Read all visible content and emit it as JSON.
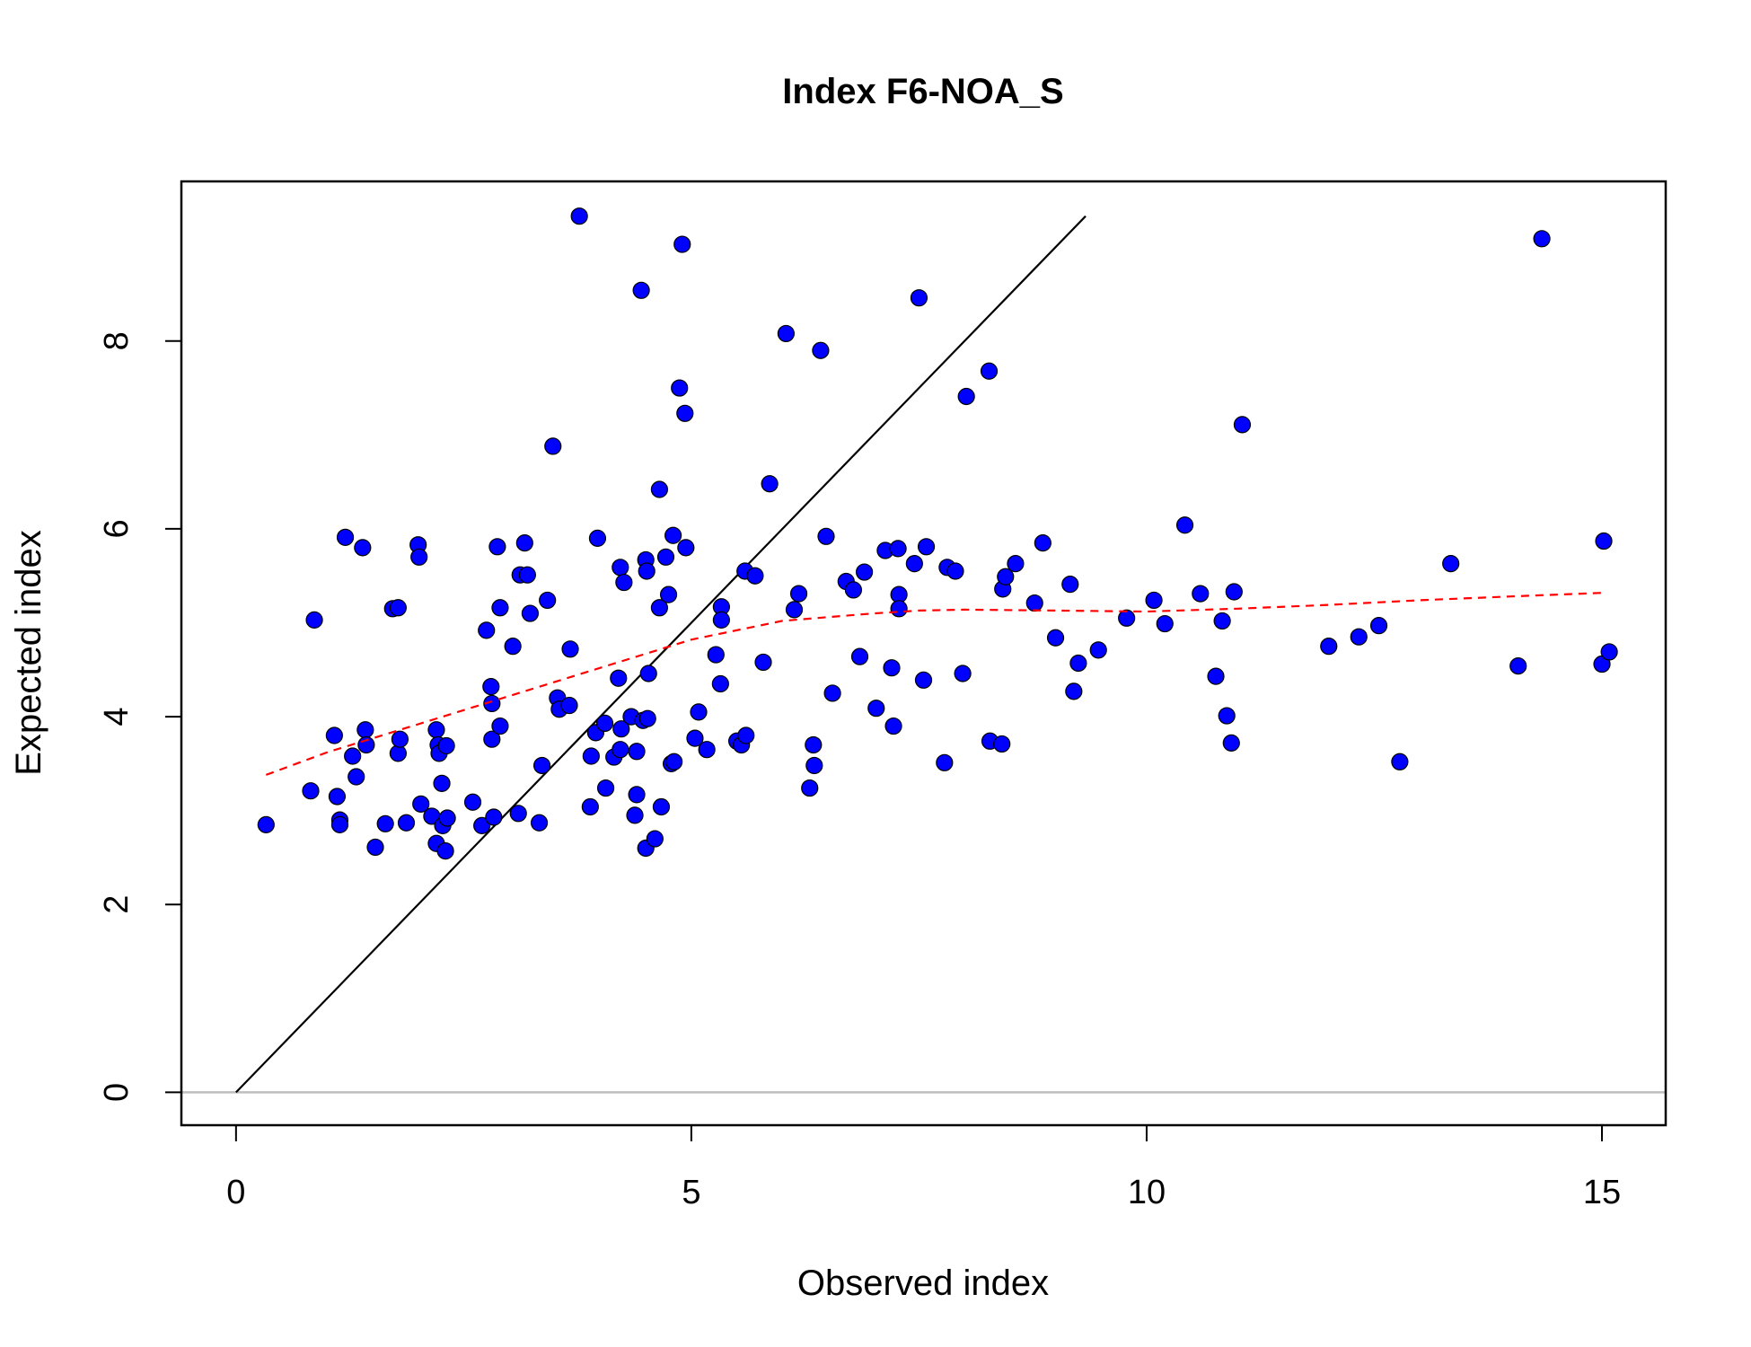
{
  "chart_data": {
    "type": "scatter",
    "title": "Index F6-NOA_S",
    "xlabel": "Observed index",
    "ylabel": "Expected index",
    "xlim": [
      -0.6,
      15.7
    ],
    "ylim": [
      -0.35,
      9.7
    ],
    "xticks": [
      0,
      5,
      10,
      15
    ],
    "yticks": [
      0,
      2,
      4,
      6,
      8
    ],
    "grid": false,
    "colors": {
      "points": "#0000ff",
      "point_border": "#000000",
      "identity_line": "#000000",
      "smoother": "#ff0000",
      "zero_line": "#bebebe",
      "frame": "#000000"
    },
    "identity_line": {
      "from": [
        0,
        0
      ],
      "to": [
        9.33,
        9.33
      ]
    },
    "zero_line": {
      "y": 0
    },
    "smoother": {
      "style": "dashed",
      "x": [
        0.33,
        1,
        2,
        3,
        4,
        5,
        6,
        7,
        7.5,
        8,
        9,
        10,
        11,
        12,
        13,
        14,
        15.05
      ],
      "y": [
        3.38,
        3.62,
        3.92,
        4.22,
        4.52,
        4.82,
        5.02,
        5.1,
        5.13,
        5.14,
        5.13,
        5.12,
        5.15,
        5.19,
        5.24,
        5.28,
        5.32
      ]
    },
    "series": [
      {
        "points": [
          [
            0.33,
            2.85
          ],
          [
            0.82,
            3.21
          ],
          [
            0.86,
            5.03
          ],
          [
            1.08,
            3.8
          ],
          [
            1.11,
            3.15
          ],
          [
            1.14,
            2.9
          ],
          [
            1.14,
            2.85
          ],
          [
            1.2,
            5.91
          ],
          [
            1.28,
            3.58
          ],
          [
            1.32,
            3.36
          ],
          [
            1.39,
            5.8
          ],
          [
            1.42,
            3.86
          ],
          [
            1.43,
            3.7
          ],
          [
            1.53,
            2.61
          ],
          [
            1.64,
            2.86
          ],
          [
            1.72,
            5.15
          ],
          [
            1.78,
            3.61
          ],
          [
            1.78,
            5.16
          ],
          [
            1.8,
            3.76
          ],
          [
            1.87,
            2.87
          ],
          [
            2.0,
            5.83
          ],
          [
            2.01,
            5.7
          ],
          [
            2.03,
            3.07
          ],
          [
            2.15,
            2.94
          ],
          [
            2.2,
            2.65
          ],
          [
            2.2,
            3.86
          ],
          [
            2.22,
            3.7
          ],
          [
            2.23,
            3.61
          ],
          [
            2.26,
            3.29
          ],
          [
            2.27,
            2.84
          ],
          [
            2.3,
            2.57
          ],
          [
            2.31,
            3.69
          ],
          [
            2.32,
            2.92
          ],
          [
            2.6,
            3.09
          ],
          [
            2.7,
            2.84
          ],
          [
            2.75,
            4.92
          ],
          [
            2.8,
            4.32
          ],
          [
            2.81,
            3.76
          ],
          [
            2.81,
            4.14
          ],
          [
            2.83,
            2.93
          ],
          [
            2.87,
            5.81
          ],
          [
            2.9,
            3.9
          ],
          [
            2.9,
            5.16
          ],
          [
            3.04,
            4.75
          ],
          [
            3.1,
            2.97
          ],
          [
            3.12,
            5.51
          ],
          [
            3.17,
            5.85
          ],
          [
            3.2,
            5.51
          ],
          [
            3.23,
            5.1
          ],
          [
            3.33,
            2.87
          ],
          [
            3.36,
            3.48
          ],
          [
            3.42,
            5.24
          ],
          [
            3.48,
            6.88
          ],
          [
            3.53,
            4.2
          ],
          [
            3.55,
            4.08
          ],
          [
            3.66,
            4.12
          ],
          [
            3.67,
            4.72
          ],
          [
            3.77,
            9.33
          ],
          [
            3.89,
            3.04
          ],
          [
            3.9,
            3.58
          ],
          [
            3.95,
            3.83
          ],
          [
            3.97,
            5.9
          ],
          [
            4.05,
            3.93
          ],
          [
            4.06,
            3.24
          ],
          [
            4.15,
            3.57
          ],
          [
            4.2,
            4.41
          ],
          [
            4.22,
            5.59
          ],
          [
            4.22,
            3.65
          ],
          [
            4.23,
            3.87
          ],
          [
            4.26,
            5.43
          ],
          [
            4.34,
            4.0
          ],
          [
            4.38,
            2.95
          ],
          [
            4.4,
            3.17
          ],
          [
            4.4,
            3.63
          ],
          [
            4.45,
            8.54
          ],
          [
            4.47,
            3.96
          ],
          [
            4.5,
            2.6
          ],
          [
            4.5,
            5.67
          ],
          [
            4.51,
            5.55
          ],
          [
            4.52,
            3.98
          ],
          [
            4.53,
            4.46
          ],
          [
            4.6,
            2.7
          ],
          [
            4.65,
            6.42
          ],
          [
            4.65,
            5.16
          ],
          [
            4.67,
            3.04
          ],
          [
            4.72,
            5.7
          ],
          [
            4.75,
            5.3
          ],
          [
            4.78,
            3.5
          ],
          [
            4.8,
            5.93
          ],
          [
            4.81,
            3.52
          ],
          [
            4.87,
            7.5
          ],
          [
            4.9,
            9.03
          ],
          [
            4.93,
            7.23
          ],
          [
            4.94,
            5.8
          ],
          [
            5.04,
            3.77
          ],
          [
            5.08,
            4.05
          ],
          [
            5.17,
            3.65
          ],
          [
            5.27,
            4.66
          ],
          [
            5.32,
            4.35
          ],
          [
            5.33,
            5.17
          ],
          [
            5.33,
            5.03
          ],
          [
            5.5,
            3.74
          ],
          [
            5.55,
            3.7
          ],
          [
            5.59,
            5.55
          ],
          [
            5.6,
            3.8
          ],
          [
            5.7,
            5.5
          ],
          [
            5.79,
            4.58
          ],
          [
            5.86,
            6.48
          ],
          [
            6.04,
            8.08
          ],
          [
            6.13,
            5.14
          ],
          [
            6.18,
            5.31
          ],
          [
            6.3,
            3.24
          ],
          [
            6.34,
            3.7
          ],
          [
            6.35,
            3.48
          ],
          [
            6.42,
            7.9
          ],
          [
            6.48,
            5.92
          ],
          [
            6.55,
            4.25
          ],
          [
            6.7,
            5.44
          ],
          [
            6.78,
            5.35
          ],
          [
            6.85,
            4.64
          ],
          [
            6.9,
            5.54
          ],
          [
            7.03,
            4.09
          ],
          [
            7.13,
            5.77
          ],
          [
            7.2,
            4.52
          ],
          [
            7.22,
            3.9
          ],
          [
            7.27,
            5.79
          ],
          [
            7.28,
            5.3
          ],
          [
            7.28,
            5.15
          ],
          [
            7.45,
            5.63
          ],
          [
            7.5,
            8.46
          ],
          [
            7.55,
            4.39
          ],
          [
            7.58,
            5.81
          ],
          [
            7.78,
            3.51
          ],
          [
            7.81,
            5.59
          ],
          [
            7.9,
            5.55
          ],
          [
            7.98,
            4.46
          ],
          [
            8.02,
            7.41
          ],
          [
            8.27,
            7.68
          ],
          [
            8.28,
            3.74
          ],
          [
            8.41,
            3.71
          ],
          [
            8.42,
            5.36
          ],
          [
            8.45,
            5.49
          ],
          [
            8.56,
            5.63
          ],
          [
            8.77,
            5.21
          ],
          [
            8.86,
            5.85
          ],
          [
            9.0,
            4.84
          ],
          [
            9.16,
            5.41
          ],
          [
            9.2,
            4.27
          ],
          [
            9.25,
            4.57
          ],
          [
            9.47,
            4.71
          ],
          [
            9.78,
            5.05
          ],
          [
            10.08,
            5.24
          ],
          [
            10.2,
            4.99
          ],
          [
            10.42,
            6.04
          ],
          [
            10.59,
            5.31
          ],
          [
            10.76,
            4.43
          ],
          [
            10.83,
            5.02
          ],
          [
            10.88,
            4.01
          ],
          [
            10.93,
            3.72
          ],
          [
            10.96,
            5.33
          ],
          [
            11.05,
            7.11
          ],
          [
            12.0,
            4.75
          ],
          [
            12.33,
            4.85
          ],
          [
            12.55,
            4.97
          ],
          [
            12.78,
            3.52
          ],
          [
            13.34,
            5.63
          ],
          [
            14.08,
            4.54
          ],
          [
            14.34,
            9.09
          ],
          [
            15.0,
            4.56
          ],
          [
            15.02,
            5.87
          ],
          [
            15.08,
            4.69
          ]
        ]
      }
    ]
  }
}
